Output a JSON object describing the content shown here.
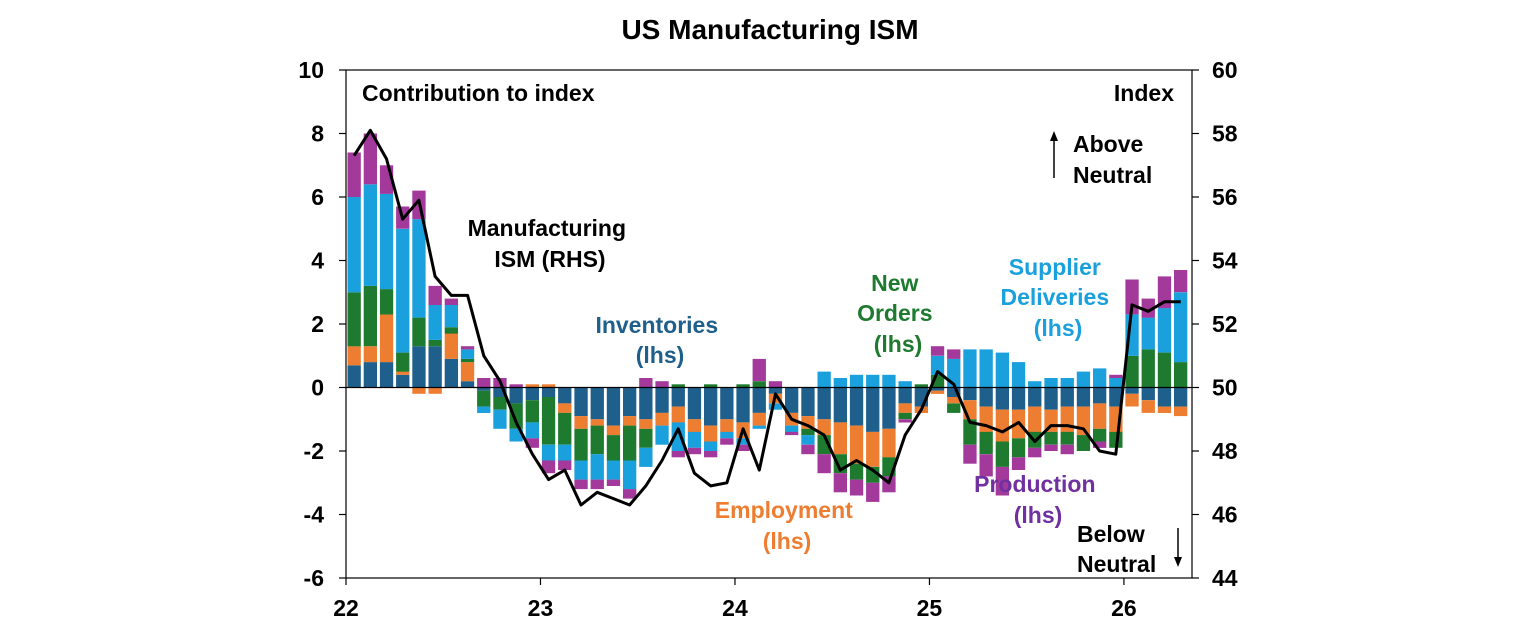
{
  "chart_data": {
    "type": "bar",
    "title": "US Manufacturing ISM",
    "left_axis_label": "Contribution to index",
    "right_axis_label": "Index",
    "ylim_left": [
      -6,
      10
    ],
    "yticks_left": [
      "10",
      "8",
      "6",
      "4",
      "2",
      "0",
      "-2",
      "-4",
      "-6"
    ],
    "ylim_right": [
      44,
      60
    ],
    "yticks_right": [
      "60",
      "58",
      "56",
      "54",
      "52",
      "50",
      "48",
      "46",
      "44"
    ],
    "xlim": [
      2022,
      2026.35
    ],
    "xticks": [
      "22",
      "23",
      "24",
      "25",
      "26"
    ],
    "stacked": true,
    "colors": {
      "inventories": "#1f5f8b",
      "employment": "#ed7d31",
      "new_orders": "#1e7a2e",
      "supplier_deliveries": "#1aa0dc",
      "production": "#a2399b",
      "ism_line": "#000000"
    },
    "labels": {
      "ism": [
        "Manufacturing",
        "ISM (RHS)"
      ],
      "inventories": [
        "Inventories",
        "(lhs)"
      ],
      "employment": [
        "Employment",
        "(lhs)"
      ],
      "new_orders": [
        "New",
        "Orders",
        "(lhs)"
      ],
      "supplier_deliveries": [
        "Supplier",
        "Deliveries",
        "(lhs)"
      ],
      "production": [
        "Production",
        "(lhs)"
      ],
      "above": [
        "Above",
        "Neutral"
      ],
      "below": [
        "Below",
        "Neutral"
      ]
    },
    "months": [
      "2022-01",
      "2022-02",
      "2022-03",
      "2022-04",
      "2022-05",
      "2022-06",
      "2022-07",
      "2022-08",
      "2022-09",
      "2022-10",
      "2022-11",
      "2022-12",
      "2023-01",
      "2023-02",
      "2023-03",
      "2023-04",
      "2023-05",
      "2023-06",
      "2023-07",
      "2023-08",
      "2023-09",
      "2023-10",
      "2023-11",
      "2023-12",
      "2024-01",
      "2024-02",
      "2024-03",
      "2024-04",
      "2024-05",
      "2024-06",
      "2024-07",
      "2024-08",
      "2024-09",
      "2024-10",
      "2024-11",
      "2024-12",
      "2025-01",
      "2025-02",
      "2025-03",
      "2025-04",
      "2025-05",
      "2025-06",
      "2025-07",
      "2025-08",
      "2025-09",
      "2025-10",
      "2025-11",
      "2025-12",
      "2026-01",
      "2026-02",
      "2026-03",
      "2026-04"
    ],
    "series": [
      {
        "name": "Inventories",
        "key": "inventories",
        "values": [
          0.7,
          0.8,
          0.8,
          0.4,
          1.3,
          1.3,
          0.9,
          0.2,
          -0.1,
          -0.3,
          -0.5,
          -0.4,
          -0.3,
          -0.5,
          -0.9,
          -1.0,
          -1.2,
          -0.9,
          -1.0,
          -0.8,
          -0.6,
          -1.0,
          -1.2,
          -1.0,
          -1.1,
          -0.8,
          -0.2,
          -0.8,
          -0.9,
          -1.0,
          -1.1,
          -1.2,
          -1.4,
          -1.3,
          -0.5,
          -0.6,
          -0.1,
          -0.3,
          -0.4,
          -0.6,
          -0.7,
          -0.7,
          -0.6,
          -0.7,
          -0.6,
          -0.6,
          -0.5,
          -0.6,
          -0.2,
          -0.4,
          -0.6,
          -0.6
        ]
      },
      {
        "name": "Employment",
        "key": "employment",
        "values": [
          0.6,
          0.5,
          1.5,
          0.1,
          -0.2,
          -0.2,
          0.8,
          0.6,
          0.0,
          0.0,
          0.0,
          0.1,
          0.1,
          -0.3,
          -0.4,
          -0.2,
          -0.3,
          -0.3,
          -0.3,
          -0.4,
          -0.5,
          -0.4,
          -0.5,
          -0.4,
          -0.5,
          -0.4,
          -0.3,
          -0.4,
          -0.4,
          -0.5,
          -1.0,
          -1.2,
          -1.1,
          -0.9,
          -0.3,
          -0.2,
          -0.1,
          -0.2,
          -0.6,
          -0.8,
          -1.0,
          -0.9,
          -0.8,
          -0.7,
          -0.8,
          -0.9,
          -0.8,
          -0.8,
          -0.4,
          -0.4,
          -0.2,
          -0.3
        ]
      },
      {
        "name": "New Orders",
        "key": "new_orders",
        "values": [
          1.7,
          1.9,
          0.8,
          0.6,
          0.9,
          0.2,
          0.2,
          0.1,
          -0.5,
          -0.4,
          -0.8,
          -0.7,
          -1.5,
          -1.0,
          -1.0,
          -0.9,
          -0.8,
          -1.1,
          -0.6,
          0.0,
          0.1,
          0.0,
          0.1,
          0.0,
          0.1,
          0.2,
          0.0,
          0.0,
          -0.2,
          -0.6,
          -0.6,
          -0.5,
          -0.5,
          -0.6,
          -0.2,
          0.1,
          0.4,
          -0.3,
          -0.8,
          -0.7,
          -0.8,
          -0.6,
          -0.5,
          -0.4,
          -0.4,
          -0.5,
          -0.4,
          -0.5,
          1.0,
          1.2,
          1.1,
          0.8
        ]
      },
      {
        "name": "Supplier Deliveries",
        "key": "supplier_deliveries",
        "values": [
          3.0,
          3.2,
          3.0,
          3.9,
          3.1,
          1.1,
          0.7,
          0.3,
          -0.2,
          -0.6,
          -0.4,
          -0.5,
          -0.5,
          -0.5,
          -0.6,
          -0.8,
          -0.6,
          -0.9,
          -0.6,
          -0.6,
          -0.9,
          -0.5,
          -0.3,
          -0.2,
          -0.2,
          -0.1,
          -0.2,
          -0.2,
          -0.3,
          0.5,
          0.3,
          0.4,
          0.4,
          0.4,
          0.2,
          0.0,
          0.6,
          0.9,
          1.2,
          1.2,
          1.1,
          0.8,
          0.2,
          0.3,
          0.3,
          0.5,
          0.6,
          0.3,
          1.3,
          1.0,
          1.4,
          2.2
        ]
      },
      {
        "name": "Production",
        "key": "production",
        "values": [
          1.4,
          1.6,
          0.9,
          0.7,
          0.9,
          0.6,
          0.2,
          0.1,
          0.3,
          0.3,
          0.1,
          -0.3,
          -0.4,
          -0.3,
          -0.3,
          -0.3,
          -0.2,
          -0.3,
          0.3,
          0.2,
          -0.2,
          -0.2,
          -0.2,
          -0.2,
          -0.2,
          0.7,
          0.2,
          -0.1,
          -0.3,
          -0.6,
          -0.6,
          -0.5,
          -0.6,
          -0.5,
          -0.1,
          0.0,
          0.3,
          0.3,
          -0.6,
          -0.7,
          -0.9,
          -0.4,
          -0.3,
          -0.2,
          -0.3,
          0.0,
          -0.2,
          0.1,
          1.1,
          0.6,
          1.0,
          0.7
        ]
      },
      {
        "name": "Manufacturing ISM (RHS)",
        "key": "ism",
        "axis": "right",
        "values": [
          57.3,
          58.1,
          57.2,
          55.3,
          55.9,
          53.5,
          52.9,
          52.9,
          51.0,
          50.2,
          48.9,
          47.9,
          47.1,
          47.4,
          46.3,
          46.7,
          46.5,
          46.3,
          46.9,
          47.7,
          48.7,
          47.3,
          46.9,
          47.0,
          48.7,
          47.4,
          49.8,
          49.0,
          48.8,
          48.5,
          47.4,
          47.7,
          47.4,
          47.0,
          48.5,
          49.3,
          50.5,
          50.1,
          48.9,
          48.8,
          48.6,
          48.9,
          48.3,
          48.8,
          48.8,
          48.7,
          48.0,
          47.9,
          52.6,
          52.4,
          52.7,
          52.7
        ]
      }
    ]
  }
}
